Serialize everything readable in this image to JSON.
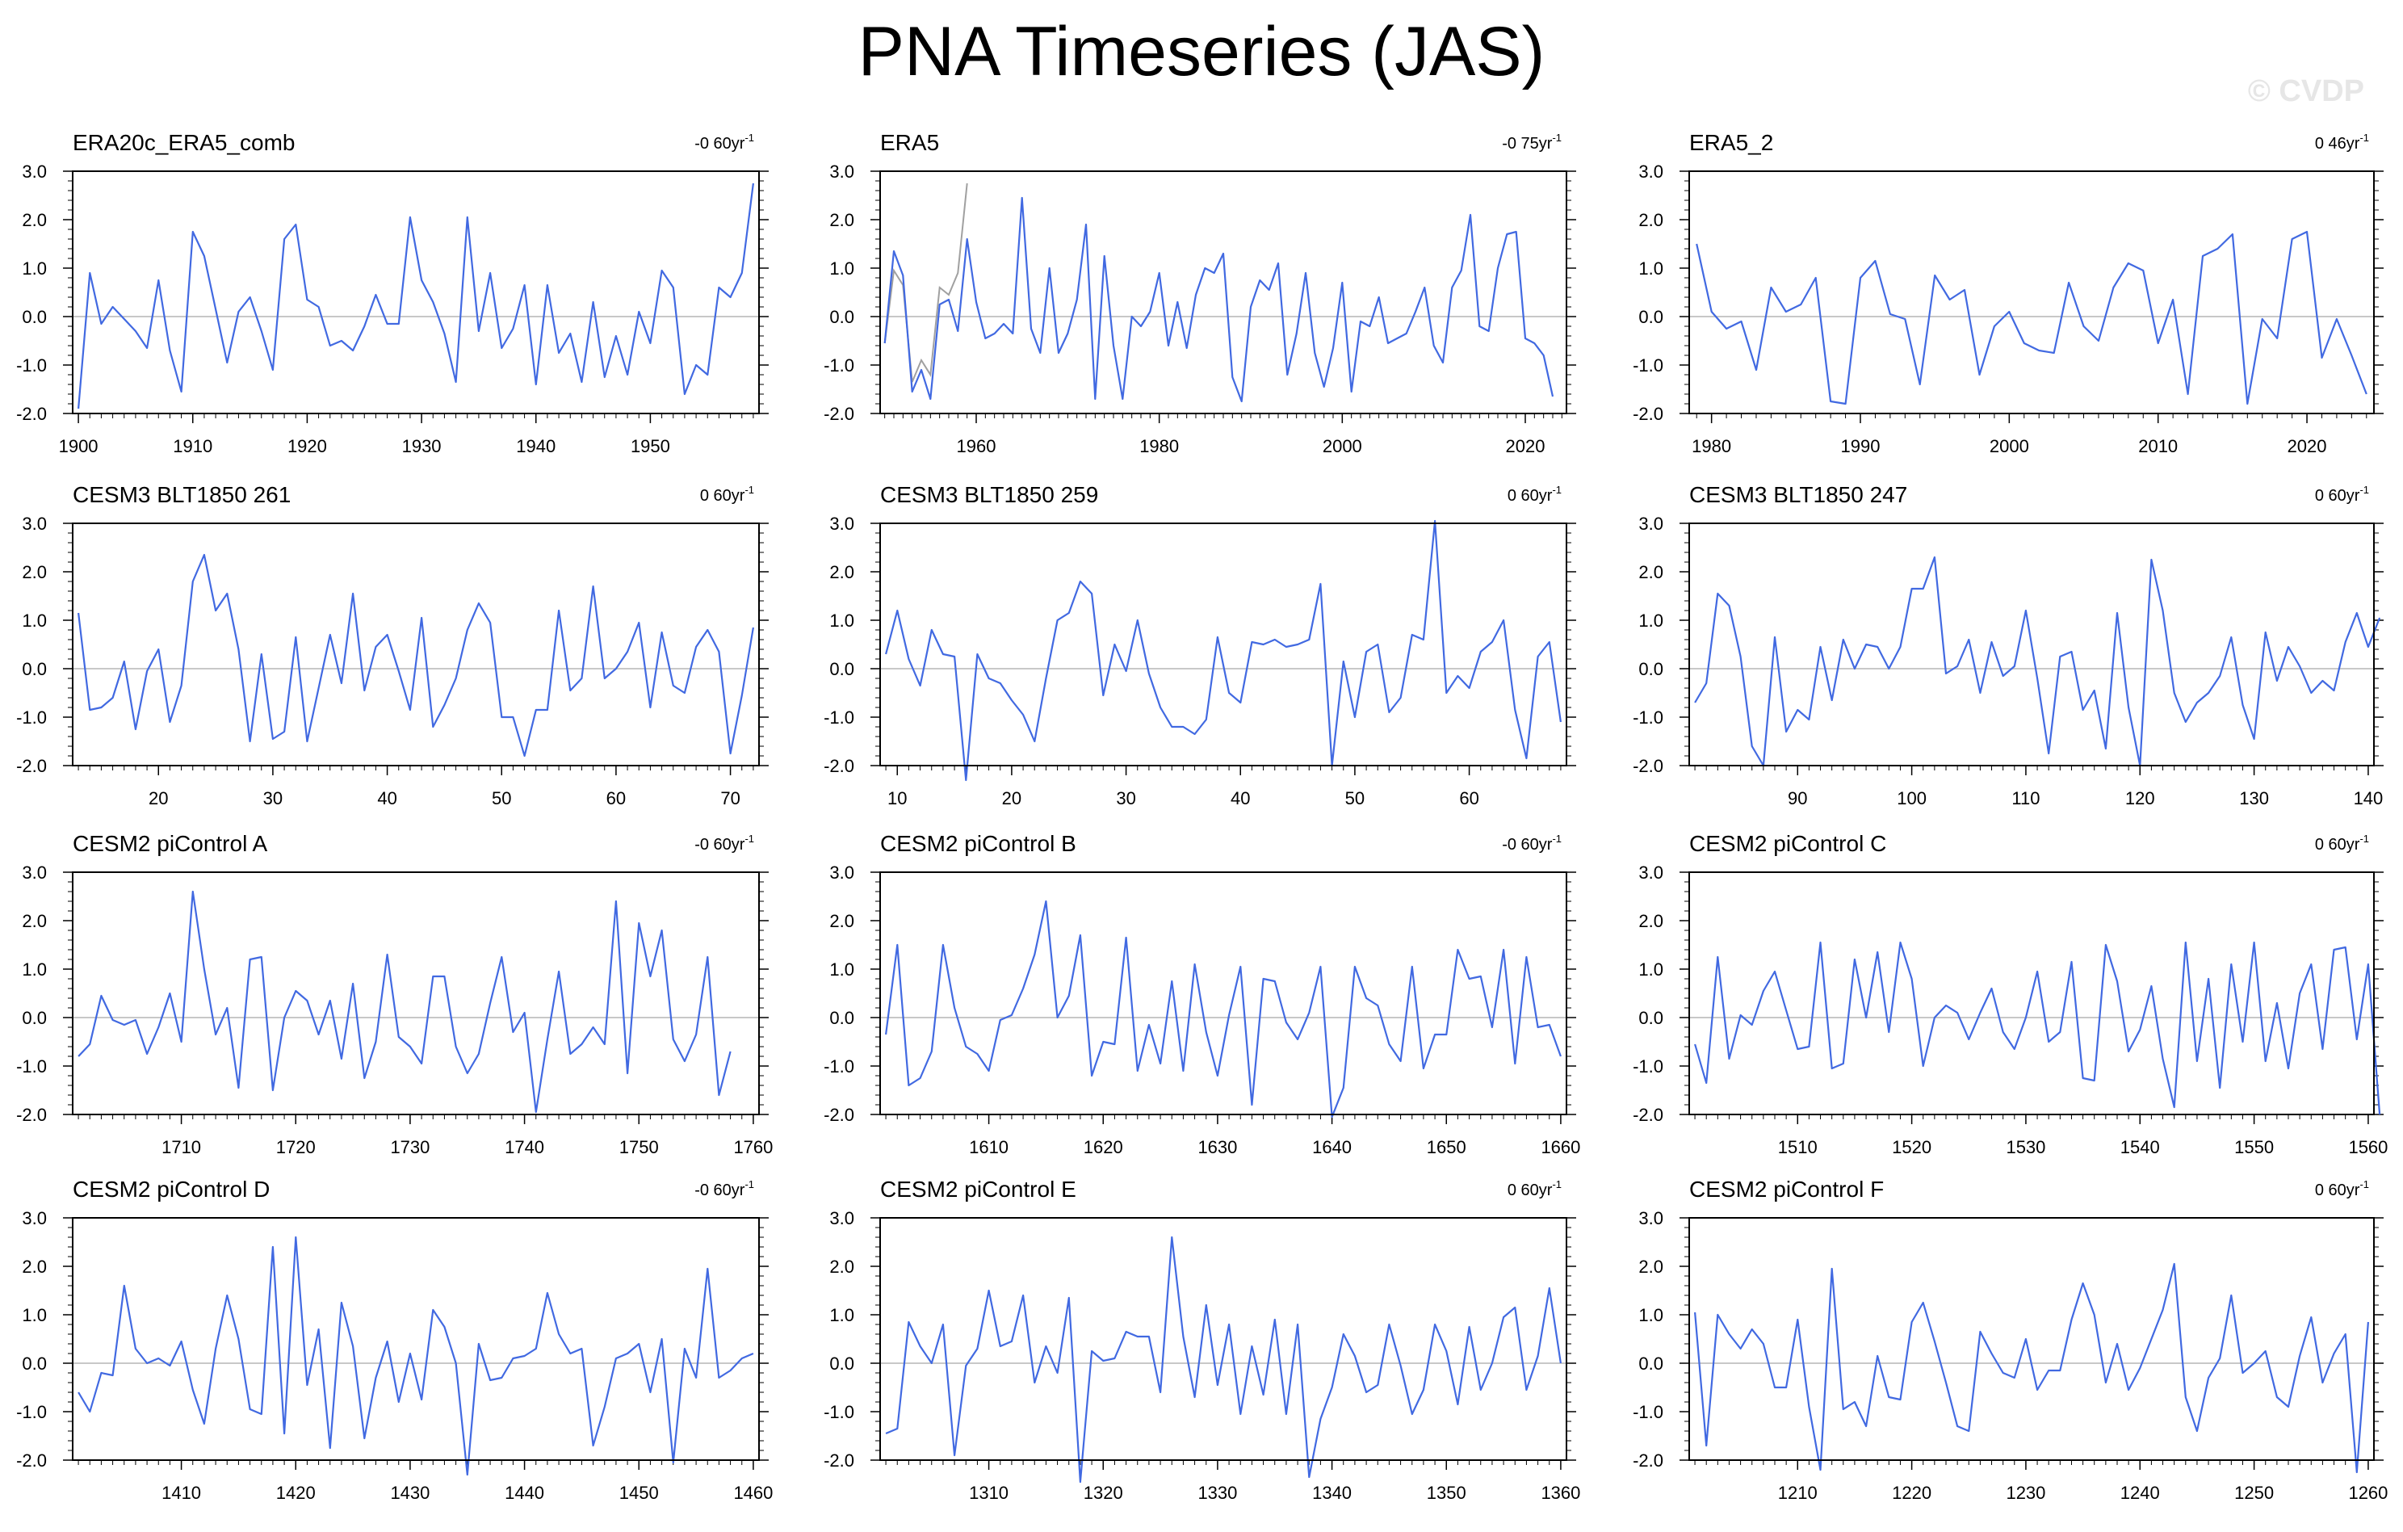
{
  "page": {
    "title": "PNA Timeseries (JAS)",
    "watermark": "© CVDP"
  },
  "colors": {
    "series": "#4169e1",
    "secondary": "#a0a0a0",
    "zero_line": "#c8c8c8",
    "axes": "#000000"
  },
  "chart_data": [
    {
      "type": "line",
      "title": "ERA20c_ERA5_comb",
      "trend": "-0 60yr",
      "trend_sup": "-1",
      "x_start": 1900,
      "ylim": [
        -2.0,
        3.0
      ],
      "y_ticks": [
        3.0,
        2.0,
        1.0,
        0.0,
        -1.0,
        -2.0
      ],
      "y_tick_labels": [
        "3.0",
        "2.0",
        "1.0",
        "0.0",
        "-1.0",
        "-2.0"
      ],
      "x_ticks": [
        1900,
        1910,
        1920,
        1930,
        1940,
        1950
      ],
      "xlim": [
        1899.5,
        1959.5
      ],
      "values": [
        -1.9,
        0.9,
        -0.15,
        0.2,
        -0.05,
        -0.3,
        -0.65,
        0.75,
        -0.7,
        -1.55,
        1.75,
        1.25,
        0.15,
        -0.95,
        0.1,
        0.4,
        -0.3,
        -1.1,
        1.6,
        1.9,
        0.35,
        0.2,
        -0.6,
        -0.5,
        -0.7,
        -0.2,
        0.45,
        -0.15,
        -0.15,
        2.05,
        0.75,
        0.3,
        -0.35,
        -1.35,
        2.05,
        -0.3,
        0.9,
        -0.65,
        -0.25,
        0.65,
        -1.4,
        0.65,
        -0.75,
        -0.35,
        -1.35,
        0.3,
        -1.25,
        -0.4,
        -1.2,
        0.1,
        -0.55,
        0.95,
        0.6,
        -1.6,
        -1.0,
        -1.2,
        0.6,
        0.4,
        0.9,
        2.75
      ]
    },
    {
      "type": "line",
      "title": "ERA5",
      "trend": "-0 75yr",
      "trend_sup": "-1",
      "x_start": 1950,
      "ylim": [
        -2.0,
        3.0
      ],
      "y_ticks": [
        3.0,
        2.0,
        1.0,
        0.0,
        -1.0,
        -2.0
      ],
      "y_tick_labels": [
        "3.0",
        "2.0",
        "1.0",
        "0.0",
        "-1.0",
        "-2.0"
      ],
      "x_ticks": [
        1960,
        1980,
        2000,
        2020
      ],
      "xlim": [
        1949.5,
        2024.5
      ],
      "values": [
        -0.55,
        1.35,
        0.85,
        -1.55,
        -1.1,
        -1.7,
        0.25,
        0.35,
        -0.3,
        1.6,
        0.3,
        -0.45,
        -0.35,
        -0.15,
        -0.35,
        2.45,
        -0.25,
        -0.75,
        1.0,
        -0.75,
        -0.35,
        0.35,
        1.9,
        -1.7,
        1.25,
        -0.6,
        -1.7,
        0.0,
        -0.2,
        0.1,
        0.9,
        -0.6,
        0.3,
        -0.65,
        0.45,
        1.0,
        0.9,
        1.3,
        -1.25,
        -1.75,
        0.2,
        0.75,
        0.55,
        1.1,
        -1.2,
        -0.35,
        0.9,
        -0.75,
        -1.45,
        -0.65,
        0.7,
        -1.55,
        -0.1,
        -0.2,
        0.4,
        -0.55,
        -0.45,
        -0.35,
        0.1,
        0.6,
        -0.6,
        -0.95,
        0.6,
        0.95,
        2.1,
        -0.2,
        -0.3,
        1.0,
        1.7,
        1.75,
        -0.45,
        -0.55,
        -0.8,
        -1.65
      ],
      "secondary_values": [
        -0.55,
        0.95,
        0.65,
        -1.35,
        -0.9,
        -1.2,
        0.6,
        0.45,
        0.9,
        2.75
      ]
    },
    {
      "type": "line",
      "title": "ERA5_2",
      "trend": "0 46yr",
      "trend_sup": "-1",
      "x_start": 1979,
      "ylim": [
        -2.0,
        3.0
      ],
      "y_ticks": [
        3.0,
        2.0,
        1.0,
        0.0,
        -1.0,
        -2.0
      ],
      "y_tick_labels": [
        "3.0",
        "2.0",
        "1.0",
        "0.0",
        "-1.0",
        "-2.0"
      ],
      "x_ticks": [
        1980,
        1990,
        2000,
        2010,
        2020
      ],
      "xlim": [
        1978.5,
        2024.5
      ],
      "values": [
        1.5,
        0.1,
        -0.25,
        -0.1,
        -1.1,
        0.6,
        0.1,
        0.25,
        0.8,
        -1.75,
        -1.8,
        0.8,
        1.15,
        0.05,
        -0.05,
        -1.4,
        0.85,
        0.35,
        0.55,
        -1.2,
        -0.2,
        0.1,
        -0.55,
        -0.7,
        -0.75,
        0.7,
        -0.2,
        -0.5,
        0.6,
        1.1,
        0.95,
        -0.55,
        0.35,
        -1.6,
        1.25,
        1.4,
        1.7,
        -1.8,
        -0.05,
        -0.45,
        1.6,
        1.75,
        -0.85,
        -0.05,
        -0.8,
        -1.6
      ]
    },
    {
      "type": "line",
      "title": "CESM3 BLT1850 261",
      "trend": "0 60yr",
      "trend_sup": "-1",
      "x_start": 13,
      "ylim": [
        -2.0,
        3.0
      ],
      "y_ticks": [
        3.0,
        2.0,
        1.0,
        0.0,
        -1.0,
        -2.0
      ],
      "y_tick_labels": [
        "3.0",
        "2.0",
        "1.0",
        "0.0",
        "-1.0",
        "-2.0"
      ],
      "x_ticks": [
        20,
        30,
        40,
        50,
        60,
        70
      ],
      "xlim": [
        12.5,
        72.5
      ],
      "values": [
        1.15,
        -0.85,
        -0.8,
        -0.6,
        0.15,
        -1.25,
        -0.05,
        0.4,
        -1.1,
        -0.35,
        1.8,
        2.35,
        1.2,
        1.55,
        0.4,
        -1.5,
        0.3,
        -1.45,
        -1.3,
        0.65,
        -1.5,
        -0.4,
        0.7,
        -0.3,
        1.55,
        -0.45,
        0.45,
        0.7,
        -0.05,
        -0.85,
        1.05,
        -1.2,
        -0.75,
        -0.2,
        0.8,
        1.35,
        0.95,
        -1.0,
        -1.0,
        -1.8,
        -0.85,
        -0.85,
        1.2,
        -0.45,
        -0.2,
        1.7,
        -0.2,
        0.0,
        0.35,
        0.95,
        -0.8,
        0.75,
        -0.35,
        -0.5,
        0.45,
        0.8,
        0.35,
        -1.75,
        -0.55,
        0.85
      ]
    },
    {
      "type": "line",
      "title": "CESM3 BLT1850 259",
      "trend": "0 60yr",
      "trend_sup": "-1",
      "x_start": 9,
      "ylim": [
        -2.0,
        3.0
      ],
      "y_ticks": [
        3.0,
        2.0,
        1.0,
        0.0,
        -1.0,
        -2.0
      ],
      "y_tick_labels": [
        "3.0",
        "2.0",
        "1.0",
        "0.0",
        "-1.0",
        "-2.0"
      ],
      "x_ticks": [
        10,
        20,
        30,
        40,
        50,
        60
      ],
      "xlim": [
        8.5,
        68.5
      ],
      "values": [
        0.3,
        1.2,
        0.2,
        -0.35,
        0.8,
        0.3,
        0.25,
        -2.3,
        0.3,
        -0.2,
        -0.3,
        -0.65,
        -0.95,
        -1.5,
        -0.2,
        1.0,
        1.15,
        1.8,
        1.55,
        -0.55,
        0.5,
        -0.05,
        1.0,
        -0.1,
        -0.8,
        -1.2,
        -1.2,
        -1.35,
        -1.05,
        0.65,
        -0.5,
        -0.7,
        0.55,
        0.5,
        0.6,
        0.45,
        0.5,
        0.6,
        1.75,
        -2.0,
        0.15,
        -1.0,
        0.35,
        0.5,
        -0.9,
        -0.6,
        0.7,
        0.6,
        3.05,
        -0.5,
        -0.15,
        -0.4,
        0.35,
        0.55,
        1.0,
        -0.85,
        -1.85,
        0.25,
        0.55,
        -1.1
      ]
    },
    {
      "type": "line",
      "title": "CESM3 BLT1850 247",
      "trend": "0 60yr",
      "trend_sup": "-1",
      "x_start": 81,
      "ylim": [
        -2.0,
        3.0
      ],
      "y_ticks": [
        3.0,
        2.0,
        1.0,
        0.0,
        -1.0,
        -2.0
      ],
      "y_tick_labels": [
        "3.0",
        "2.0",
        "1.0",
        "0.0",
        "-1.0",
        "-2.0"
      ],
      "x_ticks": [
        90,
        100,
        110,
        120,
        130,
        140
      ],
      "xlim": [
        80.5,
        140.5
      ],
      "values": [
        -0.7,
        -0.3,
        1.55,
        1.3,
        0.25,
        -1.6,
        -2.0,
        0.65,
        -1.3,
        -0.85,
        -1.05,
        0.45,
        -0.65,
        0.6,
        0.0,
        0.5,
        0.45,
        0.0,
        0.45,
        1.65,
        1.65,
        2.3,
        -0.1,
        0.05,
        0.6,
        -0.5,
        0.55,
        -0.15,
        0.05,
        1.2,
        -0.2,
        -1.75,
        0.25,
        0.35,
        -0.85,
        -0.45,
        -1.65,
        1.15,
        -0.8,
        -2.0,
        2.25,
        1.2,
        -0.5,
        -1.1,
        -0.7,
        -0.5,
        -0.15,
        0.65,
        -0.75,
        -1.45,
        0.75,
        -0.25,
        0.45,
        0.05,
        -0.5,
        -0.25,
        -0.45,
        0.55,
        1.15,
        0.45,
        1.05
      ]
    },
    {
      "type": "line",
      "title": "CESM2 piControl A",
      "trend": "-0 60yr",
      "trend_sup": "-1",
      "x_start": 1701,
      "ylim": [
        -2.0,
        3.0
      ],
      "y_ticks": [
        3.0,
        2.0,
        1.0,
        0.0,
        -1.0,
        -2.0
      ],
      "y_tick_labels": [
        "3.0",
        "2.0",
        "1.0",
        "0.0",
        "-1.0",
        "-2.0"
      ],
      "x_ticks": [
        1710,
        1720,
        1730,
        1740,
        1750,
        1760
      ],
      "xlim": [
        1700.5,
        1760.5
      ],
      "values": [
        -0.8,
        -0.55,
        0.45,
        -0.05,
        -0.15,
        -0.05,
        -0.75,
        -0.2,
        0.5,
        -0.5,
        2.6,
        1.0,
        -0.35,
        0.2,
        -1.45,
        1.2,
        1.25,
        -1.5,
        0.0,
        0.55,
        0.35,
        -0.35,
        0.35,
        -0.85,
        0.7,
        -1.25,
        -0.5,
        1.3,
        -0.4,
        -0.6,
        -0.95,
        0.85,
        0.85,
        -0.6,
        -1.15,
        -0.75,
        0.3,
        1.25,
        -0.3,
        0.1,
        -1.95,
        -0.45,
        0.95,
        -0.75,
        -0.55,
        -0.2,
        -0.55,
        2.4,
        -1.15,
        1.95,
        0.85,
        1.8,
        -0.45,
        -0.9,
        -0.35,
        1.25,
        -1.6,
        -0.7
      ]
    },
    {
      "type": "line",
      "title": "CESM2 piControl B",
      "trend": "-0 60yr",
      "trend_sup": "-1",
      "x_start": 1601,
      "ylim": [
        -2.0,
        3.0
      ],
      "y_ticks": [
        3.0,
        2.0,
        1.0,
        0.0,
        -1.0,
        -2.0
      ],
      "y_tick_labels": [
        "3.0",
        "2.0",
        "1.0",
        "0.0",
        "-1.0",
        "-2.0"
      ],
      "x_ticks": [
        1610,
        1620,
        1630,
        1640,
        1650,
        1660
      ],
      "xlim": [
        1600.5,
        1660.5
      ],
      "values": [
        -0.35,
        1.5,
        -1.4,
        -1.25,
        -0.7,
        1.5,
        0.2,
        -0.6,
        -0.75,
        -1.1,
        -0.05,
        0.05,
        0.6,
        1.3,
        2.4,
        0.0,
        0.45,
        1.7,
        -1.2,
        -0.5,
        -0.55,
        1.65,
        -1.1,
        -0.15,
        -0.95,
        0.75,
        -1.1,
        1.1,
        -0.3,
        -1.2,
        0.05,
        1.05,
        -1.8,
        0.8,
        0.75,
        -0.1,
        -0.45,
        0.1,
        1.05,
        -2.05,
        -1.45,
        1.05,
        0.4,
        0.25,
        -0.55,
        -0.9,
        1.05,
        -1.05,
        -0.35,
        -0.35,
        1.4,
        0.8,
        0.85,
        -0.2,
        1.4,
        -0.95,
        1.25,
        -0.2,
        -0.15,
        -0.8
      ]
    },
    {
      "type": "line",
      "title": "CESM2 piControl C",
      "trend": "0 60yr",
      "trend_sup": "-1",
      "x_start": 1501,
      "ylim": [
        -2.0,
        3.0
      ],
      "y_ticks": [
        3.0,
        2.0,
        1.0,
        0.0,
        -1.0,
        -2.0
      ],
      "y_tick_labels": [
        "3.0",
        "2.0",
        "1.0",
        "0.0",
        "-1.0",
        "-2.0"
      ],
      "x_ticks": [
        1510,
        1520,
        1530,
        1540,
        1550,
        1560
      ],
      "xlim": [
        1500.5,
        1560.5
      ],
      "values": [
        -0.55,
        -1.35,
        1.25,
        -0.85,
        0.05,
        -0.15,
        0.55,
        0.95,
        0.15,
        -0.65,
        -0.6,
        1.55,
        -1.05,
        -0.95,
        1.2,
        0.0,
        1.35,
        -0.3,
        1.55,
        0.8,
        -1.0,
        0.0,
        0.25,
        0.1,
        -0.45,
        0.1,
        0.6,
        -0.3,
        -0.65,
        0.0,
        0.95,
        -0.5,
        -0.3,
        1.15,
        -1.25,
        -1.3,
        1.5,
        0.75,
        -0.7,
        -0.25,
        0.65,
        -0.85,
        -1.85,
        1.55,
        -0.9,
        0.8,
        -1.45,
        1.1,
        -0.5,
        1.55,
        -0.9,
        0.3,
        -1.05,
        0.5,
        1.1,
        -0.65,
        1.4,
        1.45,
        -0.45,
        1.1,
        -2.0
      ]
    },
    {
      "type": "line",
      "title": "CESM2 piControl D",
      "trend": "-0 60yr",
      "trend_sup": "-1",
      "x_start": 1401,
      "ylim": [
        -2.0,
        3.0
      ],
      "y_ticks": [
        3.0,
        2.0,
        1.0,
        0.0,
        -1.0,
        -2.0
      ],
      "y_tick_labels": [
        "3.0",
        "2.0",
        "1.0",
        "0.0",
        "-1.0",
        "-2.0"
      ],
      "x_ticks": [
        1410,
        1420,
        1430,
        1440,
        1450,
        1460
      ],
      "xlim": [
        1400.5,
        1460.5
      ],
      "values": [
        -0.6,
        -1.0,
        -0.2,
        -0.25,
        1.6,
        0.3,
        0.0,
        0.1,
        -0.05,
        0.45,
        -0.55,
        -1.25,
        0.3,
        1.4,
        0.5,
        -0.95,
        -1.05,
        2.4,
        -1.45,
        2.6,
        -0.45,
        0.7,
        -1.75,
        1.25,
        0.35,
        -1.55,
        -0.3,
        0.45,
        -0.8,
        0.2,
        -0.75,
        1.1,
        0.75,
        0.0,
        -2.3,
        0.4,
        -0.35,
        -0.3,
        0.1,
        0.15,
        0.3,
        1.45,
        0.6,
        0.2,
        0.3,
        -1.7,
        -0.9,
        0.1,
        0.2,
        0.4,
        -0.6,
        0.5,
        -2.05,
        0.3,
        -0.3,
        1.95,
        -0.3,
        -0.15,
        0.1,
        0.2
      ]
    },
    {
      "type": "line",
      "title": "CESM2 piControl E",
      "trend": "0 60yr",
      "trend_sup": "-1",
      "x_start": 1301,
      "ylim": [
        -2.0,
        3.0
      ],
      "y_ticks": [
        3.0,
        2.0,
        1.0,
        0.0,
        -1.0,
        -2.0
      ],
      "y_tick_labels": [
        "3.0",
        "2.0",
        "1.0",
        "0.0",
        "-1.0",
        "-2.0"
      ],
      "x_ticks": [
        1310,
        1320,
        1330,
        1340,
        1350,
        1360
      ],
      "xlim": [
        1300.5,
        1360.5
      ],
      "values": [
        -1.45,
        -1.35,
        0.85,
        0.35,
        0.0,
        0.8,
        -1.9,
        -0.05,
        0.3,
        1.5,
        0.35,
        0.45,
        1.4,
        -0.4,
        0.35,
        -0.2,
        1.35,
        -2.45,
        0.25,
        0.05,
        0.1,
        0.65,
        0.55,
        0.55,
        -0.6,
        2.6,
        0.55,
        -0.7,
        1.2,
        -0.45,
        0.8,
        -1.05,
        0.35,
        -0.65,
        0.9,
        -1.05,
        0.8,
        -2.35,
        -1.15,
        -0.5,
        0.6,
        0.15,
        -0.6,
        -0.45,
        0.8,
        -0.05,
        -1.05,
        -0.55,
        0.8,
        0.25,
        -0.85,
        0.75,
        -0.55,
        0.0,
        0.95,
        1.15,
        -0.55,
        0.15,
        1.55,
        0.0
      ]
    },
    {
      "type": "line",
      "title": "CESM2 piControl F",
      "trend": "0 60yr",
      "trend_sup": "-1",
      "x_start": 1201,
      "ylim": [
        -2.0,
        3.0
      ],
      "y_ticks": [
        3.0,
        2.0,
        1.0,
        0.0,
        -1.0,
        -2.0
      ],
      "y_tick_labels": [
        "3.0",
        "2.0",
        "1.0",
        "0.0",
        "-1.0",
        "-2.0"
      ],
      "x_ticks": [
        1210,
        1220,
        1230,
        1240,
        1250,
        1260
      ],
      "xlim": [
        1200.5,
        1260.5
      ],
      "values": [
        1.05,
        -1.7,
        1.0,
        0.6,
        0.3,
        0.7,
        0.4,
        -0.5,
        -0.5,
        0.9,
        -0.9,
        -2.2,
        1.95,
        -0.95,
        -0.8,
        -1.3,
        0.15,
        -0.7,
        -0.75,
        0.85,
        1.25,
        0.45,
        -0.4,
        -1.3,
        -1.4,
        0.65,
        0.2,
        -0.2,
        -0.3,
        0.5,
        -0.55,
        -0.15,
        -0.15,
        0.9,
        1.65,
        1.0,
        -0.4,
        0.4,
        -0.55,
        -0.1,
        0.5,
        1.1,
        2.05,
        -0.7,
        -1.4,
        -0.3,
        0.1,
        1.4,
        -0.2,
        0.0,
        0.25,
        -0.7,
        -0.9,
        0.15,
        0.95,
        -0.4,
        0.2,
        0.6,
        -2.25,
        0.85
      ]
    }
  ]
}
